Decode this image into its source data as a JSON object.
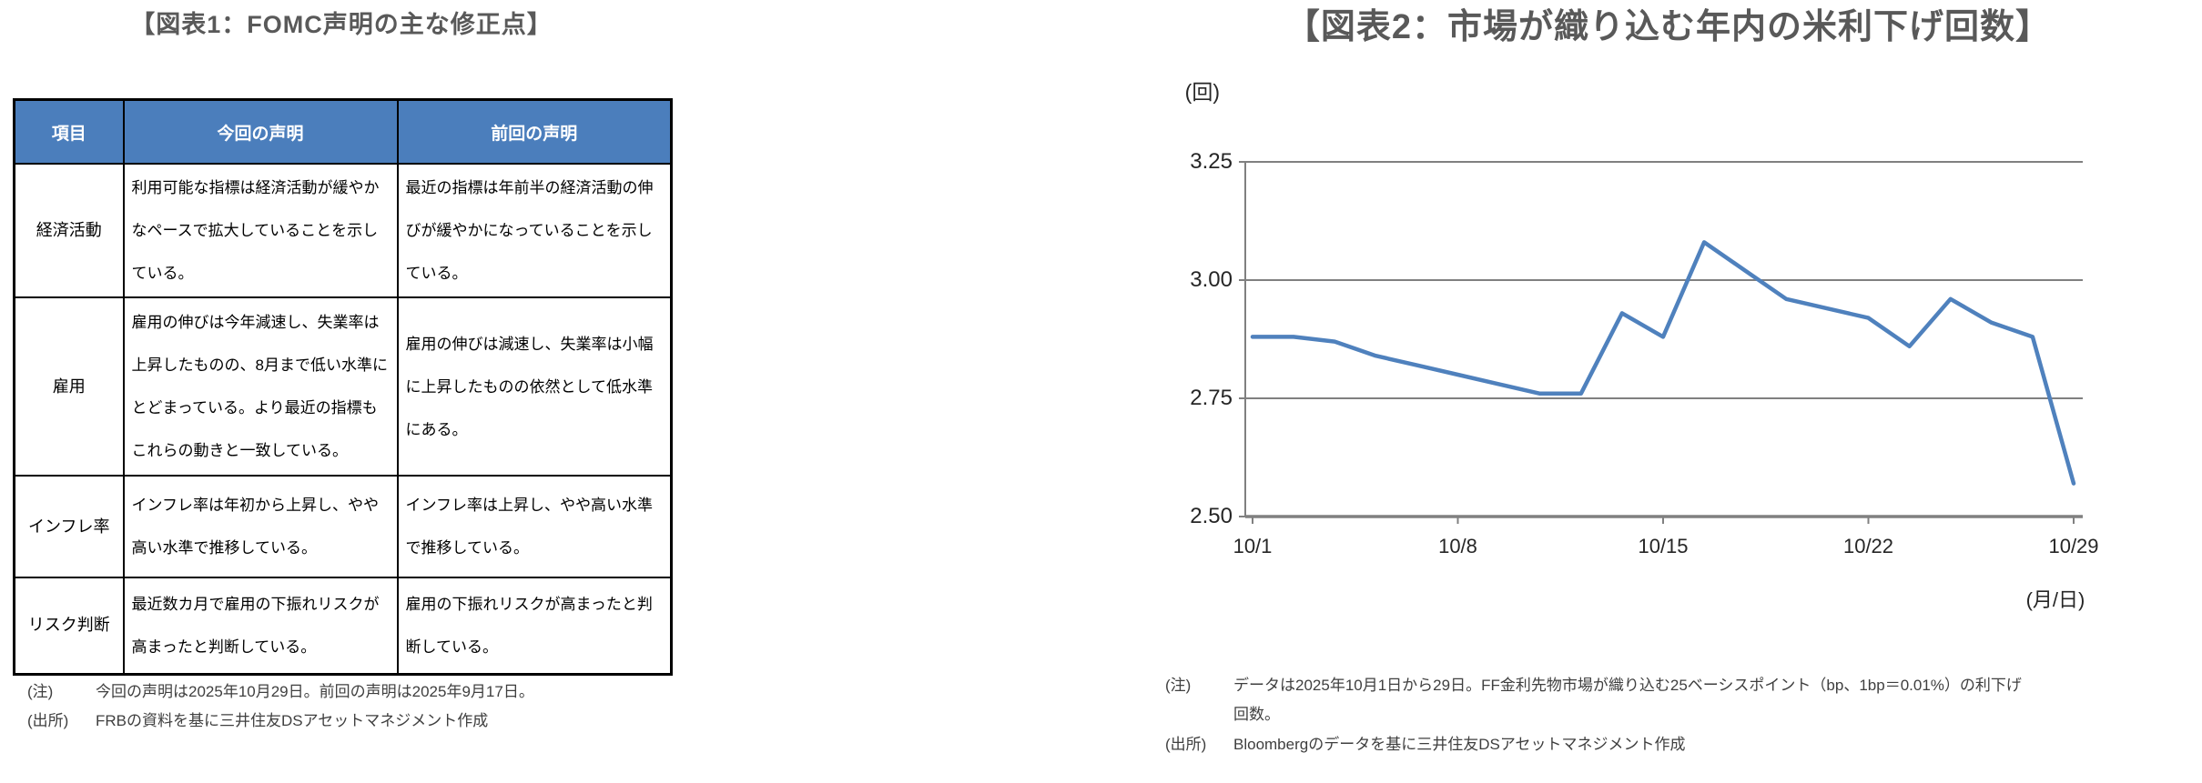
{
  "figure1": {
    "title": "【図表1：FOMC声明の主な修正点】",
    "table": {
      "headers": [
        "項目",
        "今回の声明",
        "前回の声明"
      ],
      "rows": [
        {
          "item": "経済活動",
          "current": "利用可能な指標は経済活動が緩やかなペースで拡大していることを示している。",
          "previous": "最近の指標は年前半の経済活動の伸びが緩やかになっていることを示している。"
        },
        {
          "item": "雇用",
          "current": "雇用の伸びは今年減速し、失業率は上昇したものの、8月まで低い水準にとどまっている。より最近の指標もこれらの動きと一致している。",
          "previous": "雇用の伸びは減速し、失業率は小幅に上昇したものの依然として低水準にある。"
        },
        {
          "item": "インフレ率",
          "current": "インフレ率は年初から上昇し、やや高い水準で推移している。",
          "previous": "インフレ率は上昇し、やや高い水準で推移している。"
        },
        {
          "item": "リスク判断",
          "current": "最近数カ月で雇用の下振れリスクが高まったと判断している。",
          "previous": "雇用の下振れリスクが高まったと判断している。"
        }
      ]
    },
    "notes": [
      {
        "label": "(注)",
        "text": "今回の声明は2025年10月29日。前回の声明は2025年9月17日。"
      },
      {
        "label": "(出所)",
        "text": "FRBの資料を基に三井住友DSアセットマネジメント作成"
      }
    ]
  },
  "figure2": {
    "title": "【図表2：市場が織り込む年内の米利下げ回数】",
    "notes": [
      {
        "label": "(注)",
        "text": "データは2025年10月1日から29日。FF金利先物市場が織り込む25ベーシスポイント（bp、1bp＝0.01%）の利下げ回数。"
      },
      {
        "label": "(出所)",
        "text": "Bloombergのデータを基に三井住友DSアセットマネジメント作成"
      }
    ]
  },
  "chart_data": {
    "type": "line",
    "title": "市場が織り込む年内の米利下げ回数",
    "x": [
      "10/1",
      "10/2",
      "10/3",
      "10/6",
      "10/7",
      "10/8",
      "10/9",
      "10/10",
      "10/13",
      "10/14",
      "10/15",
      "10/16",
      "10/17",
      "10/20",
      "10/21",
      "10/22",
      "10/23",
      "10/24",
      "10/27",
      "10/28",
      "10/29"
    ],
    "values": [
      2.88,
      2.88,
      2.87,
      2.84,
      2.82,
      2.8,
      2.78,
      2.76,
      2.76,
      2.93,
      2.88,
      3.08,
      3.02,
      2.96,
      2.94,
      2.92,
      2.86,
      2.96,
      2.91,
      2.88,
      2.57
    ],
    "y_unit_label": "(回)",
    "x_unit_label": "(月/日)",
    "y_ticks": [
      "3.25",
      "3.00",
      "2.75",
      "2.50"
    ],
    "x_ticks": [
      "10/1",
      "10/8",
      "10/15",
      "10/22",
      "10/29"
    ],
    "ylim": [
      2.5,
      3.25
    ],
    "grid": true,
    "legend": "none",
    "line_color": "#4F81BD",
    "axis_color": "#808080"
  }
}
